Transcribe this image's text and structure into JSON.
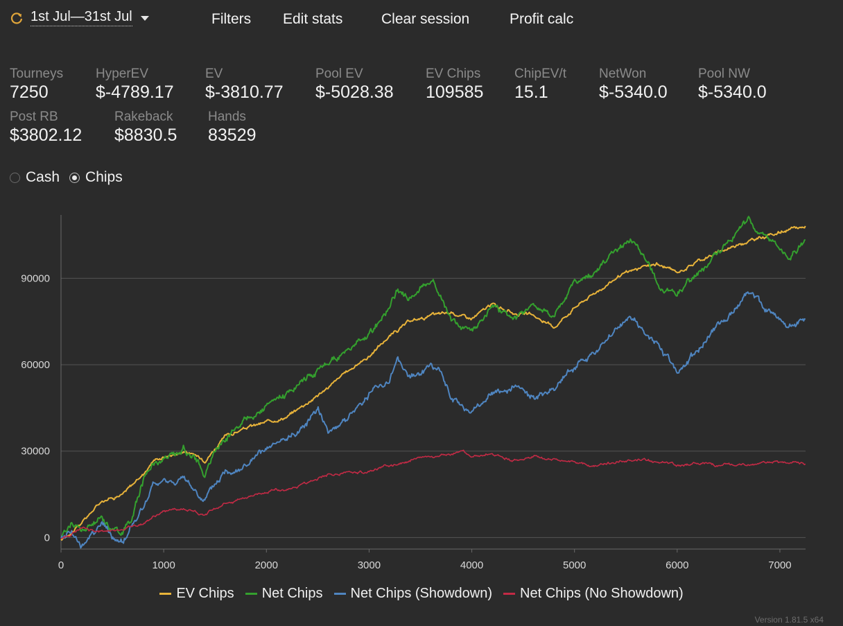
{
  "toolbar": {
    "date_range": "1st Jul—31st Jul",
    "filters": "Filters",
    "edit_stats": "Edit stats",
    "clear_session": "Clear session",
    "profit_calc": "Profit calc"
  },
  "stats": [
    {
      "label": "Tourneys",
      "value": "7250"
    },
    {
      "label": "HyperEV",
      "value": "$-4789.17"
    },
    {
      "label": "EV",
      "value": "$-3810.77"
    },
    {
      "label": "Pool EV",
      "value": "$-5028.38"
    },
    {
      "label": "EV Chips",
      "value": "109585"
    },
    {
      "label": "ChipEV/t",
      "value": "15.1"
    },
    {
      "label": "NetWon",
      "value": "$-5340.0"
    },
    {
      "label": "Pool NW",
      "value": "$-5340.0"
    },
    {
      "label": "Post RB",
      "value": "$3802.12"
    },
    {
      "label": "Rakeback",
      "value": "$8830.5"
    },
    {
      "label": "Hands",
      "value": "83529"
    }
  ],
  "view_mode": {
    "options": [
      "Cash",
      "Chips"
    ],
    "selected": "Chips"
  },
  "colors": {
    "ev_chips": "#e8b33a",
    "net_chips": "#34a02e",
    "net_showdown": "#4f85c0",
    "net_no_showdown": "#c22a45",
    "background": "#2b2b2b",
    "grid": "#555555"
  },
  "chart_data": {
    "type": "line",
    "xlim": [
      0,
      7250
    ],
    "ylim": [
      -4000,
      112000
    ],
    "x_ticks": [
      0,
      1000,
      2000,
      3000,
      4000,
      5000,
      6000,
      7000
    ],
    "y_ticks": [
      0,
      30000,
      60000,
      90000
    ],
    "grid": "horizontal",
    "legend_position": "bottom",
    "series": [
      {
        "name": "EV Chips",
        "x": [
          0,
          200,
          400,
          600,
          800,
          900,
          1000,
          1200,
          1400,
          1600,
          1800,
          2000,
          2200,
          2400,
          2600,
          2800,
          3000,
          3200,
          3400,
          3600,
          3800,
          4000,
          4200,
          4400,
          4600,
          4800,
          5000,
          5200,
          5400,
          5600,
          5800,
          6000,
          6200,
          6400,
          6600,
          6800,
          7000,
          7250
        ],
        "y": [
          -1000,
          5000,
          13000,
          15000,
          22000,
          27000,
          28000,
          30000,
          27000,
          35000,
          38000,
          40000,
          42000,
          47000,
          52000,
          58000,
          63000,
          70000,
          75000,
          77000,
          78000,
          76000,
          81000,
          78000,
          77000,
          73000,
          80000,
          85000,
          90000,
          93000,
          95000,
          92000,
          96000,
          99000,
          102000,
          104000,
          106000,
          108000
        ]
      },
      {
        "name": "Net Chips",
        "x": [
          0,
          100,
          200,
          300,
          400,
          500,
          600,
          700,
          800,
          900,
          1000,
          1100,
          1200,
          1300,
          1400,
          1500,
          1600,
          1800,
          2000,
          2200,
          2400,
          2600,
          2800,
          3000,
          3200,
          3280,
          3400,
          3600,
          3700,
          3800,
          4000,
          4200,
          4400,
          4600,
          4800,
          5000,
          5200,
          5400,
          5550,
          5700,
          5850,
          6000,
          6150,
          6300,
          6500,
          6700,
          6850,
          7000,
          7100,
          7250
        ],
        "y": [
          0,
          5000,
          2000,
          4000,
          7000,
          3000,
          2000,
          8000,
          20000,
          26000,
          27000,
          29000,
          31000,
          28000,
          22000,
          30000,
          35000,
          42000,
          45000,
          50000,
          56000,
          60000,
          65000,
          70000,
          80000,
          86000,
          83000,
          90000,
          84000,
          75000,
          72000,
          81000,
          75000,
          80000,
          77000,
          89000,
          92000,
          99000,
          104000,
          96000,
          86000,
          84000,
          90000,
          95000,
          103000,
          110000,
          106000,
          100000,
          98000,
          102000
        ]
      },
      {
        "name": "Net Chips (Showdown)",
        "x": [
          0,
          100,
          200,
          300,
          400,
          500,
          600,
          700,
          800,
          900,
          1000,
          1200,
          1400,
          1600,
          1800,
          2000,
          2200,
          2400,
          2500,
          2600,
          2800,
          3000,
          3200,
          3280,
          3400,
          3600,
          3700,
          3800,
          4000,
          4200,
          4400,
          4600,
          4800,
          5000,
          5200,
          5400,
          5550,
          5700,
          5850,
          6000,
          6100,
          6300,
          6500,
          6700,
          6850,
          7000,
          7100,
          7250
        ],
        "y": [
          -1000,
          3000,
          -4000,
          2000,
          5000,
          0,
          -2000,
          5000,
          10000,
          18000,
          19000,
          20000,
          13000,
          23000,
          25000,
          30000,
          34000,
          40000,
          46000,
          37000,
          42000,
          50000,
          55000,
          62000,
          55000,
          60000,
          57000,
          48000,
          43000,
          50000,
          52000,
          48000,
          52000,
          60000,
          64000,
          72000,
          77000,
          70000,
          65000,
          58000,
          61000,
          70000,
          77000,
          86000,
          80000,
          76000,
          73000,
          75000
        ]
      },
      {
        "name": "Net Chips (No Showdown)",
        "x": [
          0,
          200,
          400,
          600,
          800,
          1000,
          1200,
          1400,
          1600,
          1800,
          2000,
          2200,
          2400,
          2600,
          2800,
          3000,
          3200,
          3400,
          3600,
          3800,
          3900,
          4000,
          4200,
          4400,
          4600,
          4800,
          5000,
          5200,
          5400,
          5600,
          5800,
          6000,
          6200,
          6400,
          6600,
          6800,
          7000,
          7250
        ],
        "y": [
          -500,
          3000,
          2000,
          3000,
          5000,
          9000,
          10000,
          8000,
          12000,
          14000,
          16000,
          17000,
          19000,
          22000,
          22000,
          23000,
          25000,
          27000,
          28000,
          29000,
          30500,
          28000,
          29000,
          27000,
          28000,
          27000,
          26000,
          25000,
          26000,
          27000,
          26000,
          25000,
          26000,
          25000,
          25000,
          26000,
          26000,
          26000
        ]
      }
    ]
  },
  "legend": [
    "EV Chips",
    "Net Chips",
    "Net Chips (Showdown)",
    "Net Chips (No Showdown)"
  ],
  "version": "Version 1.81.5 x64"
}
